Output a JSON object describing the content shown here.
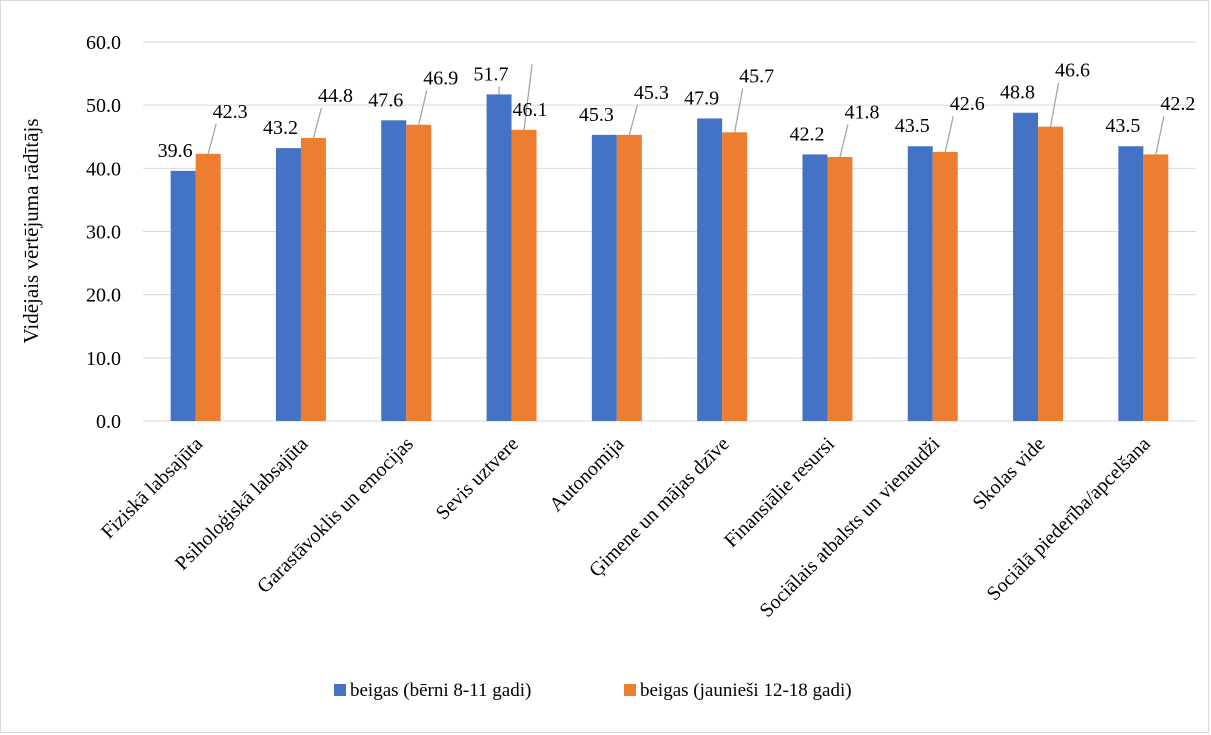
{
  "chart_data": {
    "type": "bar",
    "title": "",
    "xlabel": "",
    "ylabel": "Vidējais vērtējuma rādītājs",
    "ylim": [
      0,
      60
    ],
    "ytick_step": 10,
    "ytick_labels": [
      "0.0",
      "10.0",
      "20.0",
      "30.0",
      "40.0",
      "50.0",
      "60.0"
    ],
    "grid": true,
    "legend_position": "bottom",
    "categories": [
      "Fiziskā labsajūta",
      "Psiholoģiskā labsajūta",
      "Garastāvoklis un emocijas",
      "Sevis uztvere",
      "Autonomija",
      "Ģimene un mājas dzīve",
      "Finansiālie resursi",
      "Sociālais atbalsts un vienaudži",
      "Skolas vide",
      "Sociālā piederība/apcelšana"
    ],
    "series": [
      {
        "name": "beigas (bērni 8-11 gadi)",
        "color": "#4472C4",
        "values": [
          39.6,
          43.2,
          47.6,
          51.7,
          45.3,
          47.9,
          42.2,
          43.5,
          48.8,
          43.5
        ],
        "labels": [
          "39.6",
          "43.2",
          "47.6",
          "51.7",
          "45.3",
          "47.9",
          "42.2",
          "43.5",
          "48.8",
          "43.5"
        ]
      },
      {
        "name": "beigas (jaunieši 12-18 gadi)",
        "color": "#ED7D31",
        "values": [
          42.3,
          44.8,
          46.9,
          46.1,
          45.3,
          45.7,
          41.8,
          42.6,
          46.6,
          42.2
        ],
        "labels": [
          "42.3",
          "44.8",
          "46.9",
          "46.1",
          "45.3",
          "45.7",
          "41.8",
          "42.6",
          "46.6",
          "42.2"
        ]
      }
    ]
  }
}
